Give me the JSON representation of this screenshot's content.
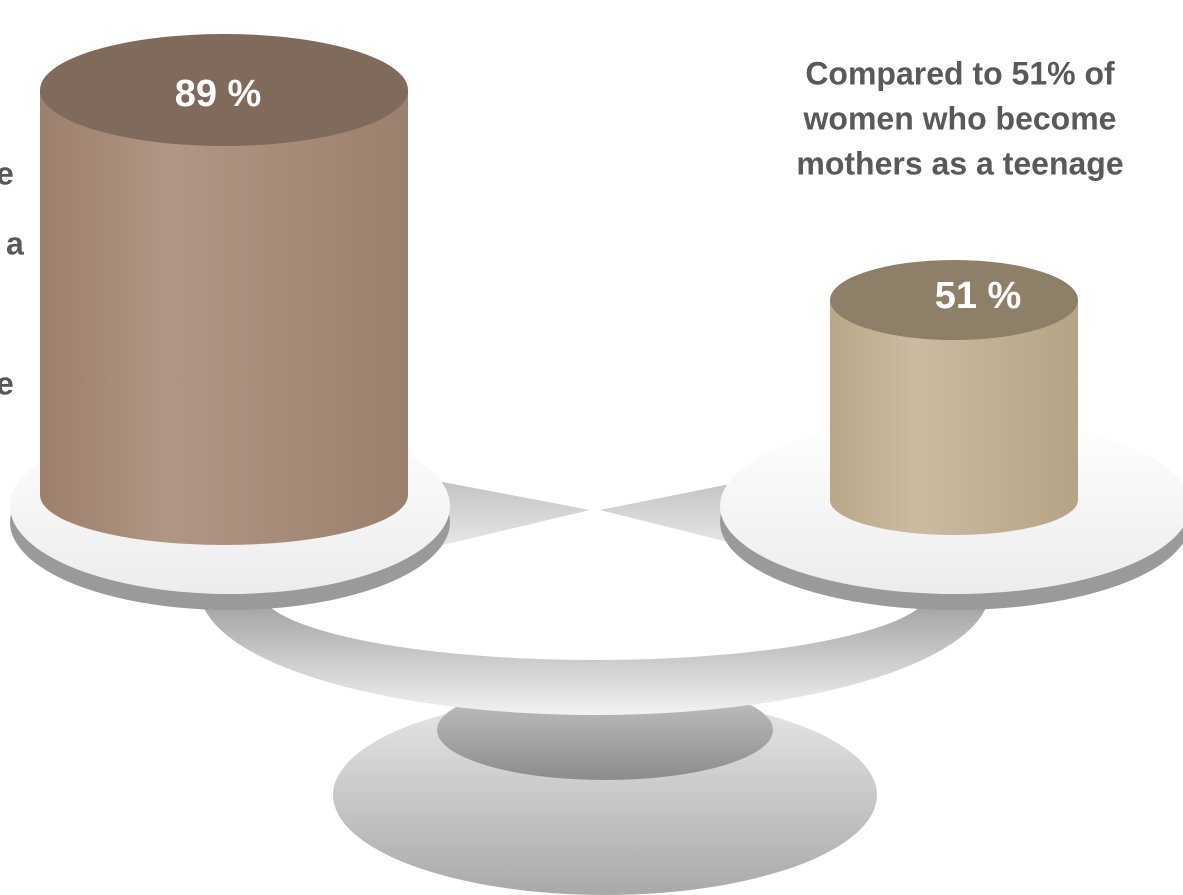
{
  "left_text": [
    "e",
    "a",
    "e"
  ],
  "right_text": [
    "Compared to 51% of",
    "women who become",
    "mothers as a teenage"
  ],
  "cylinders": [
    {
      "label": "89 %"
    },
    {
      "label": "51 %"
    }
  ]
}
